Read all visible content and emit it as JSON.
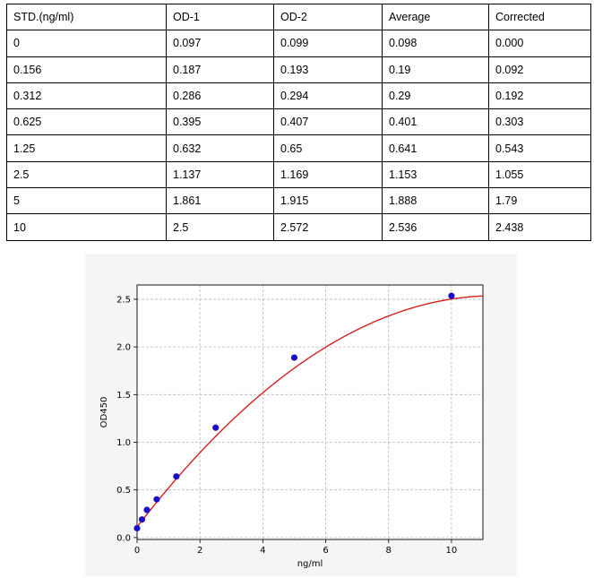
{
  "table": {
    "headers": [
      "STD.(ng/ml)",
      "OD-1",
      "OD-2",
      "Average",
      "Corrected"
    ],
    "rows": [
      [
        "0",
        "0.097",
        "0.099",
        "0.098",
        "0.000"
      ],
      [
        "0.156",
        "0.187",
        "0.193",
        "0.19",
        "0.092"
      ],
      [
        "0.312",
        "0.286",
        "0.294",
        "0.29",
        "0.192"
      ],
      [
        "0.625",
        "0.395",
        "0.407",
        "0.401",
        "0.303"
      ],
      [
        "1.25",
        "0.632",
        "0.65",
        "0.641",
        "0.543"
      ],
      [
        "2.5",
        "1.137",
        "1.169",
        "1.153",
        "1.055"
      ],
      [
        "5",
        "1.861",
        "1.915",
        "1.888",
        "1.79"
      ],
      [
        "10",
        "2.5",
        "2.572",
        "2.536",
        "2.438"
      ]
    ]
  },
  "chart_data": {
    "type": "scatter",
    "xlabel": "ng/ml",
    "ylabel": "OD450",
    "xlim": [
      0,
      11
    ],
    "ylim": [
      -0.02,
      2.65
    ],
    "x_ticks": [
      0,
      2,
      4,
      6,
      8,
      10
    ],
    "y_ticks": [
      0.0,
      0.5,
      1.0,
      1.5,
      2.0,
      2.5
    ],
    "grid": true,
    "points": [
      {
        "x": 0,
        "y": 0.098
      },
      {
        "x": 0.156,
        "y": 0.19
      },
      {
        "x": 0.312,
        "y": 0.29
      },
      {
        "x": 0.625,
        "y": 0.401
      },
      {
        "x": 1.25,
        "y": 0.641
      },
      {
        "x": 2.5,
        "y": 1.153
      },
      {
        "x": 5,
        "y": 1.888
      },
      {
        "x": 10,
        "y": 2.536
      }
    ],
    "fit_curve": {
      "type": "polynomial",
      "coefficients": [
        0.112,
        0.427,
        -0.0188
      ]
    },
    "colors": {
      "points": "#1010d0",
      "curve": "#d42020",
      "grid": "#b8b8b8",
      "plot_background": "#ffffff",
      "panel_background": "#f5f5f5"
    }
  }
}
